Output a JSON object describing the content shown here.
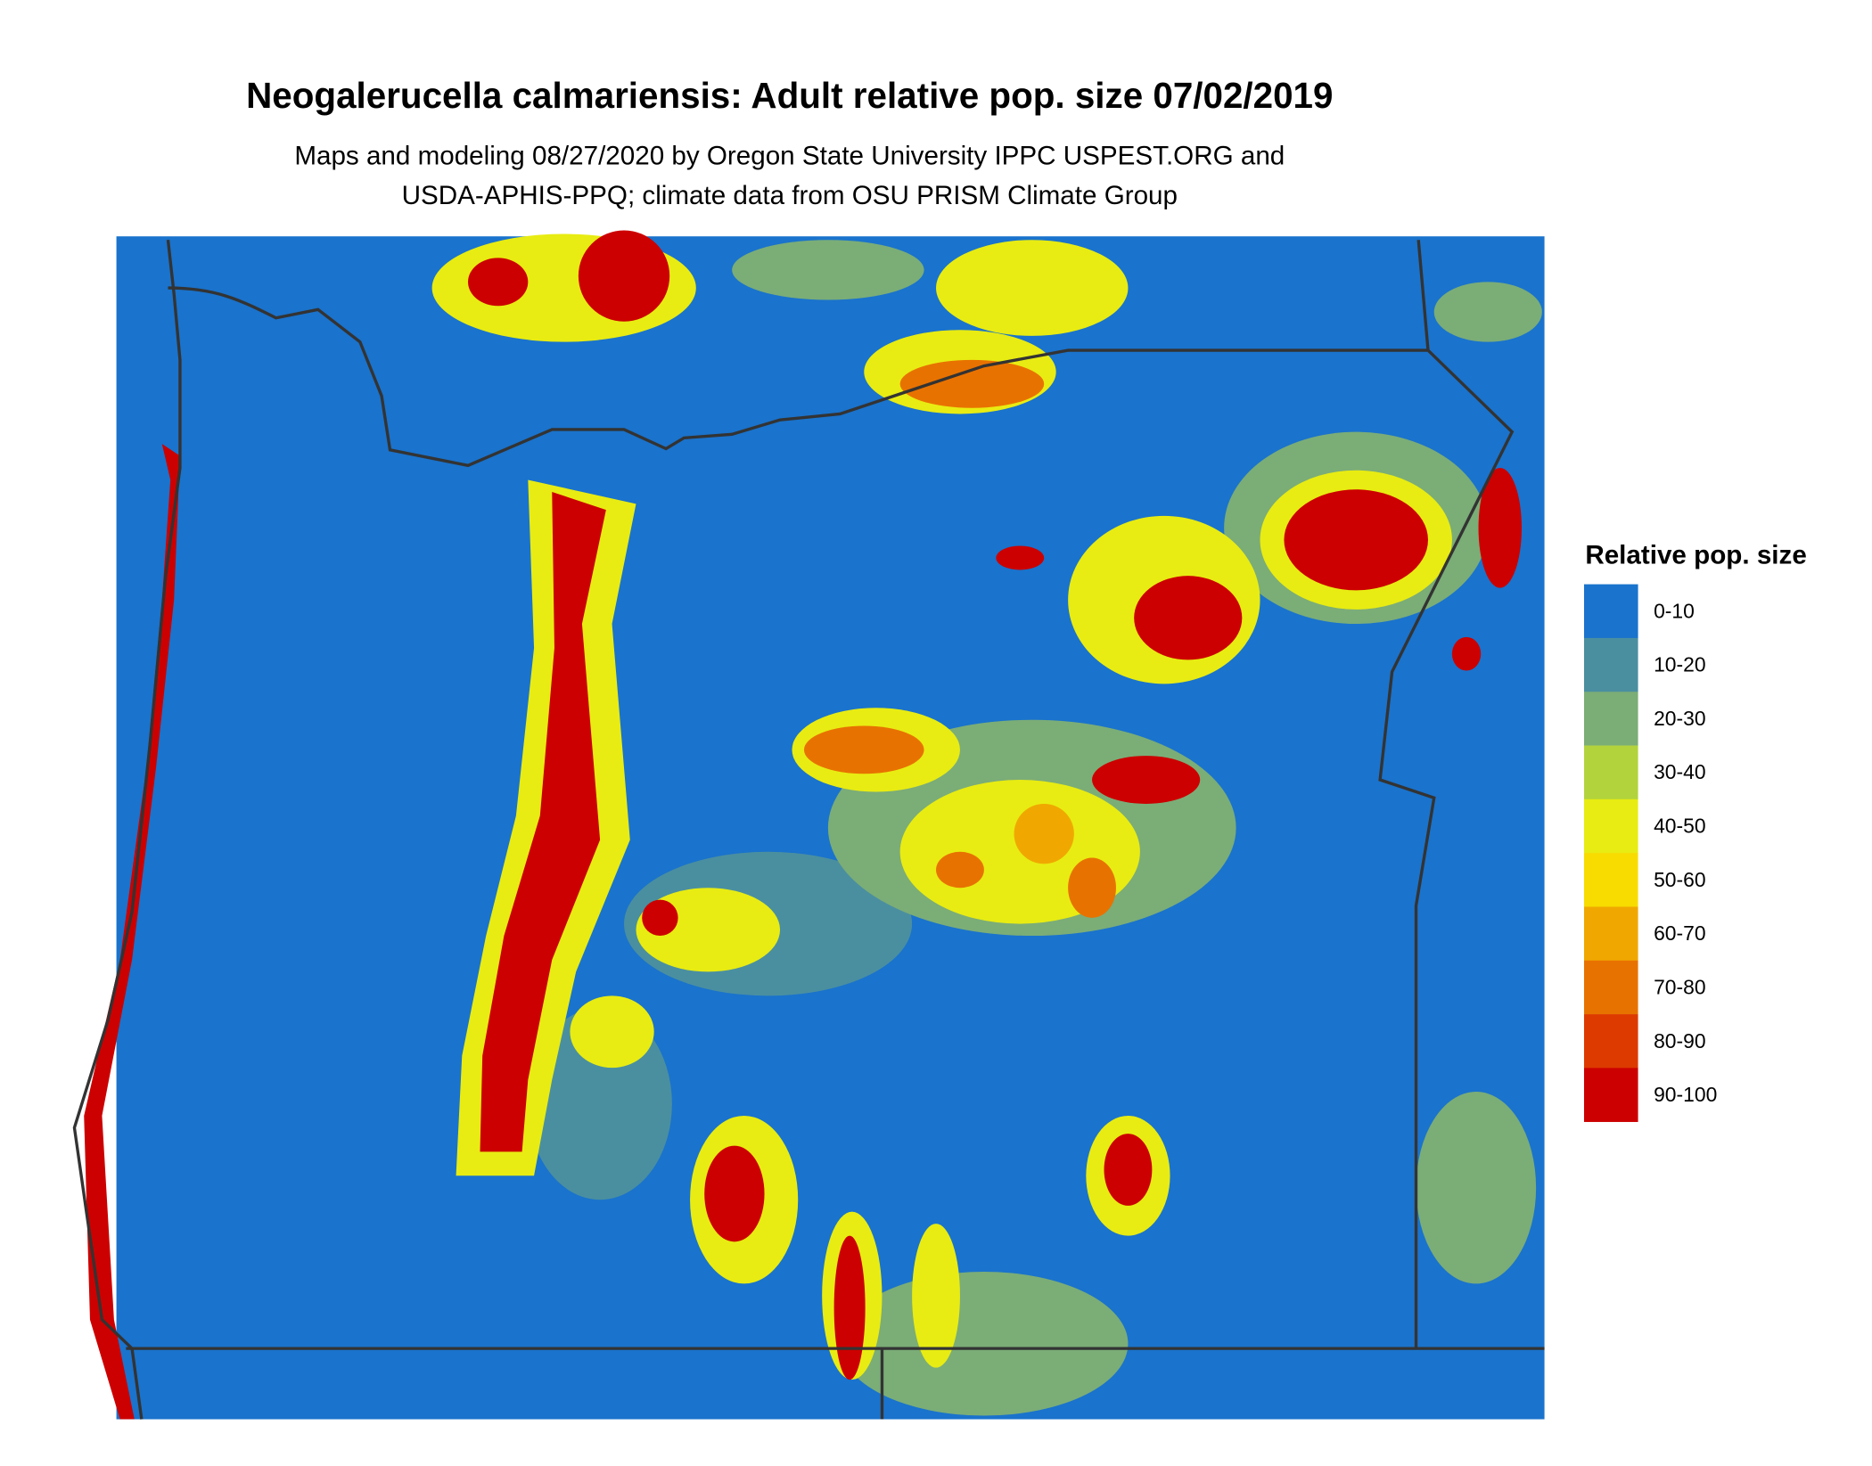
{
  "title": "Neogalerucella calmariensis: Adult relative pop. size 07/02/2019",
  "subtitle": [
    "Maps and modeling 08/27/2020 by Oregon State University IPPC USPEST.ORG and",
    "USDA-APHIS-PPQ; climate data from OSU PRISM Climate Group"
  ],
  "legend": {
    "title": "Relative pop. size",
    "items": [
      {
        "label": "0-10",
        "color": "#1a73cc"
      },
      {
        "label": "10-20",
        "color": "#4a8fa0"
      },
      {
        "label": "20-30",
        "color": "#7bad77"
      },
      {
        "label": "30-40",
        "color": "#b2d33c"
      },
      {
        "label": "40-50",
        "color": "#e8ec12"
      },
      {
        "label": "50-60",
        "color": "#f8dc00"
      },
      {
        "label": "60-70",
        "color": "#f0a800"
      },
      {
        "label": "70-80",
        "color": "#e87200"
      },
      {
        "label": "80-90",
        "color": "#dd3a00"
      },
      {
        "label": "90-100",
        "color": "#cc0000"
      }
    ]
  }
}
